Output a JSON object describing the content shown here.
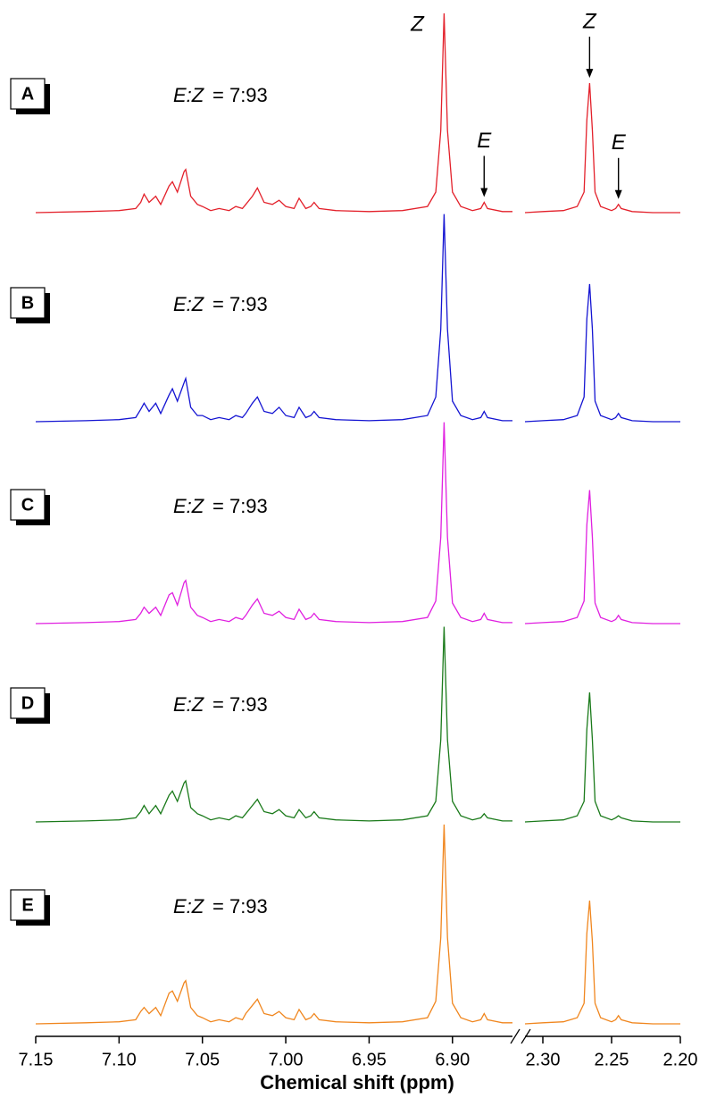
{
  "chart_data": {
    "type": "stacked-spectra",
    "xlabel": "Chemical shift (ppm)",
    "segments": [
      {
        "xlim": [
          7.15,
          6.864
        ],
        "xticks": [
          7.15,
          {
            "value": 7.1,
            "label": "7.10"
          },
          7.05,
          {
            "value": 7,
            "label": "7.00"
          },
          6.95,
          {
            "value": 6.9,
            "label": "6.90"
          }
        ]
      },
      {
        "xlim": [
          2.313,
          2.2
        ],
        "xticks": [
          {
            "value": 2.3,
            "label": "2.30"
          },
          2.25,
          {
            "value": 2.2,
            "label": "2.20"
          }
        ]
      }
    ],
    "x": [
      7.15,
      7.12,
      7.1,
      7.09,
      7.087,
      7.085,
      7.082,
      7.078,
      7.075,
      7.07,
      7.068,
      7.065,
      7.061,
      7.06,
      7.057,
      7.053,
      7.05,
      7.045,
      7.04,
      7.034,
      7.03,
      7.026,
      7.024,
      7.02,
      7.017,
      7.013,
      7.008,
      7.004,
      7.0,
      6.995,
      6.992,
      6.988,
      6.985,
      6.983,
      6.98,
      6.97,
      6.95,
      6.93,
      6.915,
      6.91,
      6.907,
      6.905,
      6.903,
      6.9,
      6.895,
      6.888,
      6.883,
      6.881,
      6.879,
      6.87,
      6.864,
      2.313,
      2.3,
      2.285,
      2.275,
      2.27,
      2.268,
      2.266,
      2.264,
      2.262,
      2.258,
      2.25,
      2.247,
      2.245,
      2.243,
      2.235,
      2.22,
      2.2
    ],
    "series": [
      {
        "name": "A",
        "color": "#e3202a",
        "ratio_label": "E:Z",
        "ratio": "= 7:93",
        "values": [
          0,
          0.5,
          1,
          2,
          5,
          9,
          5,
          8,
          4,
          13,
          15,
          10,
          20,
          21,
          8,
          4,
          3,
          1,
          2,
          1,
          3,
          2,
          4,
          8,
          12,
          5,
          4,
          6,
          3,
          2,
          7,
          2,
          3,
          5,
          2,
          1,
          0.5,
          1,
          3,
          10,
          40,
          97,
          40,
          10,
          3,
          1,
          2,
          5,
          2,
          0.5,
          0.5,
          0,
          0.5,
          1,
          3,
          10,
          45,
          63,
          40,
          10,
          3,
          1,
          2,
          4,
          2,
          0.5,
          0,
          0
        ]
      },
      {
        "name": "B",
        "color": "#1414d2",
        "ratio_label": "E:Z",
        "ratio": "= 7:93",
        "values": [
          0,
          0.5,
          1,
          2,
          6,
          9,
          5,
          9,
          4,
          13,
          16,
          10,
          19,
          21,
          7,
          3,
          3,
          1,
          2,
          1,
          3,
          2,
          4,
          9,
          12,
          5,
          4,
          7,
          3,
          2,
          7,
          2,
          3,
          5,
          2,
          1,
          0.5,
          1,
          3,
          12,
          45,
          101,
          45,
          10,
          3,
          1,
          2,
          5,
          2,
          0.5,
          0.5,
          0,
          0.5,
          1,
          3,
          12,
          50,
          67,
          45,
          10,
          3,
          1,
          2,
          4,
          2,
          0.5,
          0,
          0
        ]
      },
      {
        "name": "C",
        "color": "#e020e0",
        "ratio_label": "E:Z",
        "ratio": "= 7:93",
        "values": [
          0,
          0.5,
          1,
          2,
          5,
          8,
          5,
          8,
          4,
          14,
          15,
          9,
          20,
          21,
          8,
          4,
          3,
          1,
          2,
          1,
          3,
          2,
          4,
          9,
          12,
          5,
          4,
          6,
          3,
          2,
          7,
          2,
          3,
          5,
          2,
          1,
          0.5,
          1,
          3,
          11,
          42,
          98,
          42,
          10,
          3,
          1,
          2,
          5,
          2,
          0.5,
          0.5,
          0,
          0.5,
          1,
          3,
          11,
          48,
          65,
          42,
          10,
          3,
          1,
          2,
          4,
          2,
          0.5,
          0,
          0
        ]
      },
      {
        "name": "D",
        "color": "#1a7a1a",
        "ratio_label": "E:Z",
        "ratio": "= 7:93",
        "values": [
          0,
          0.5,
          1,
          2,
          5,
          8,
          4,
          8,
          4,
          13,
          15,
          10,
          19,
          20,
          7,
          4,
          3,
          1,
          2,
          1,
          3,
          2,
          4,
          8,
          11,
          5,
          4,
          6,
          3,
          2,
          6,
          2,
          3,
          5,
          2,
          1,
          0.5,
          1,
          3,
          10,
          40,
          95,
          40,
          10,
          3,
          1,
          2,
          4,
          2,
          0.5,
          0.5,
          0,
          0.5,
          1,
          3,
          10,
          45,
          63,
          40,
          10,
          3,
          1,
          2,
          3,
          2,
          0.5,
          0,
          0
        ]
      },
      {
        "name": "E",
        "color": "#f0861e",
        "ratio_label": "E:Z",
        "ratio": "= 7:93",
        "values": [
          0,
          0.5,
          1,
          2,
          6,
          8,
          5,
          8,
          4,
          15,
          16,
          11,
          20,
          21,
          8,
          4,
          3,
          1,
          2,
          1,
          3,
          2,
          5,
          9,
          12,
          5,
          4,
          6,
          3,
          2,
          7,
          2,
          3,
          5,
          2,
          1,
          0.5,
          1,
          3,
          11,
          42,
          97,
          42,
          10,
          3,
          1,
          2,
          5,
          2,
          0.5,
          0.5,
          0,
          0.5,
          1,
          3,
          10,
          44,
          60,
          40,
          10,
          3,
          1,
          2,
          4,
          2,
          0.5,
          0,
          0
        ]
      }
    ],
    "annotations": [
      {
        "text": "Z",
        "x": 6.905,
        "arrow": false
      },
      {
        "text": "E",
        "x": 6.881,
        "arrow": true
      },
      {
        "text": "Z",
        "x": 2.266,
        "arrow": true
      },
      {
        "text": "E",
        "x": 2.245,
        "arrow": true
      }
    ]
  }
}
